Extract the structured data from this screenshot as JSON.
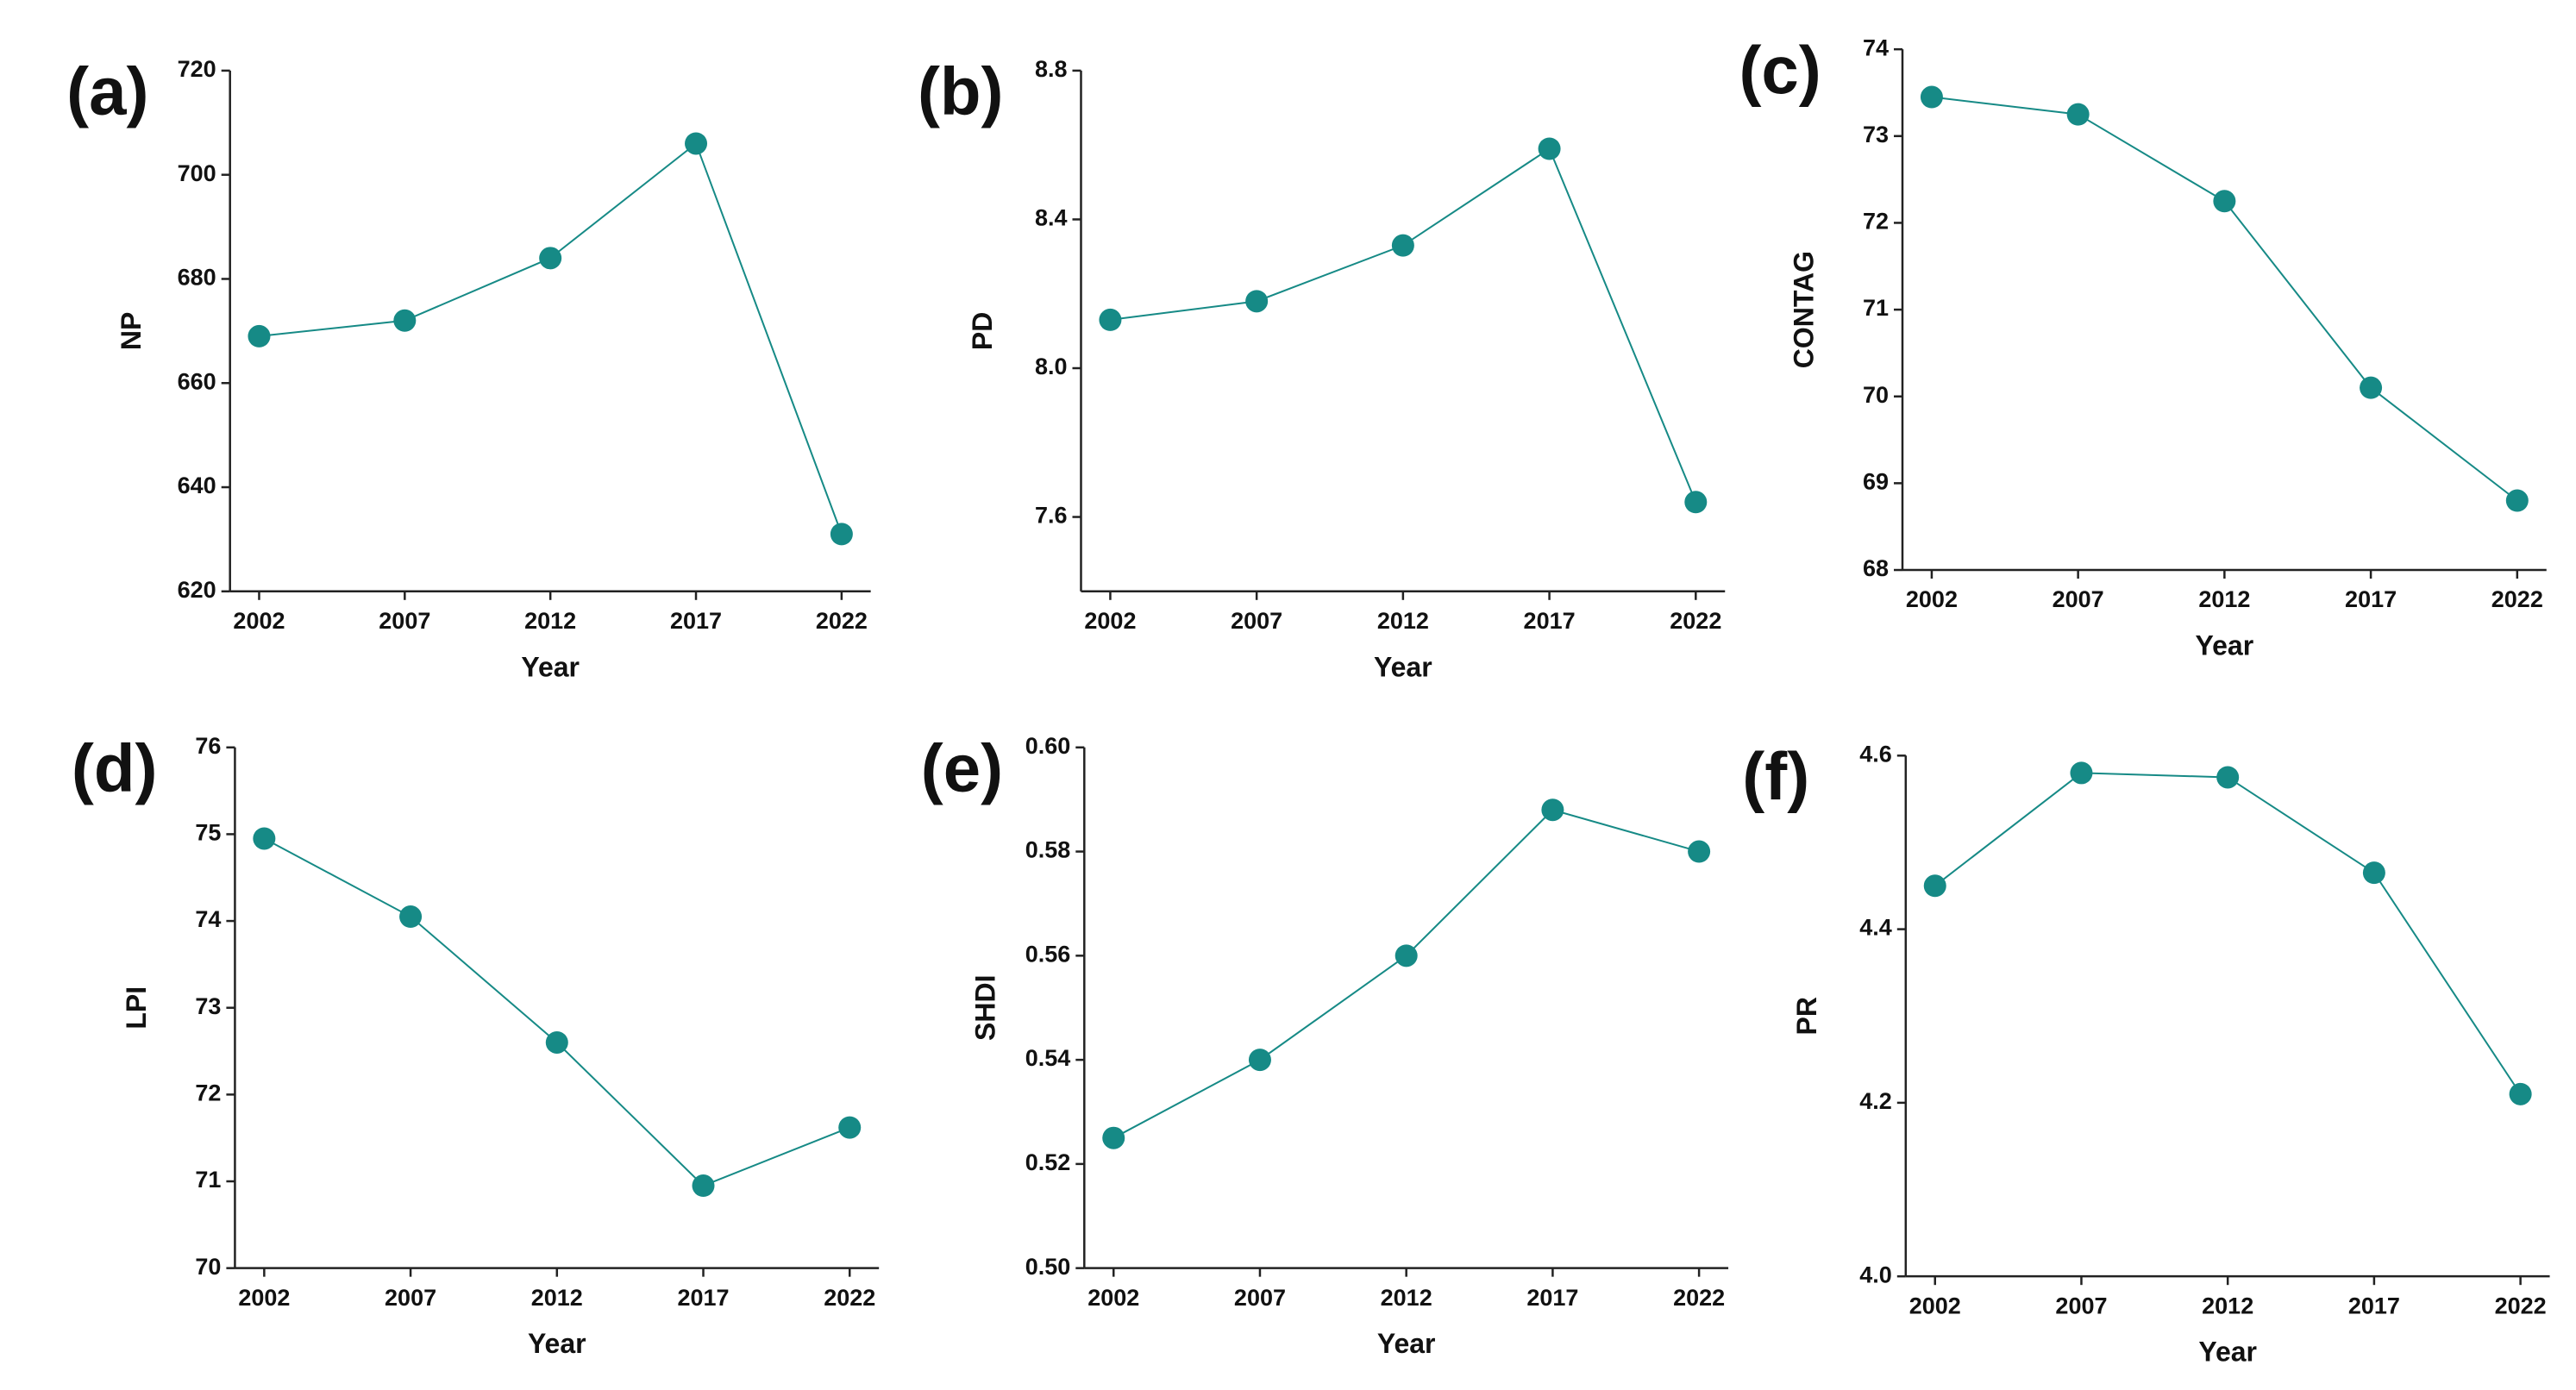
{
  "chart_data": [
    {
      "type": "line",
      "label": "(a)",
      "xlabel": "Year",
      "ylabel": "NP",
      "color": "#168a86",
      "x": [
        2002,
        2007,
        2012,
        2017,
        2022
      ],
      "values": [
        669,
        672,
        684,
        706,
        631
      ],
      "xlim": [
        2001,
        2023
      ],
      "xticks": [
        2002,
        2007,
        2012,
        2017,
        2022
      ],
      "ylim": [
        620,
        720
      ],
      "yticks": [
        620,
        640,
        660,
        680,
        700,
        720
      ]
    },
    {
      "type": "line",
      "label": "(b)",
      "xlabel": "Year",
      "ylabel": "PD",
      "color": "#168a86",
      "x": [
        2002,
        2007,
        2012,
        2017,
        2022
      ],
      "values": [
        8.13,
        8.18,
        8.33,
        8.59,
        7.64
      ],
      "xlim": [
        2001,
        2023
      ],
      "xticks": [
        2002,
        2007,
        2012,
        2017,
        2022
      ],
      "ylim": [
        7.4,
        8.8
      ],
      "yticks": [
        7.6,
        {
          "value": 8,
          "label": "8.0"
        },
        8.4,
        8.8
      ]
    },
    {
      "type": "line",
      "label": "(c)",
      "xlabel": "Year",
      "ylabel": "CONTAG",
      "color": "#168a86",
      "x": [
        2002,
        2007,
        2012,
        2017,
        2022
      ],
      "values": [
        73.45,
        73.25,
        72.25,
        70.1,
        68.8
      ],
      "xlim": [
        2001,
        2023
      ],
      "xticks": [
        2002,
        2007,
        2012,
        2017,
        2022
      ],
      "ylim": [
        68,
        74
      ],
      "yticks": [
        68,
        69,
        70,
        71,
        72,
        73,
        74
      ]
    },
    {
      "type": "line",
      "label": "(d)",
      "xlabel": "Year",
      "ylabel": "LPI",
      "color": "#168a86",
      "x": [
        2002,
        2007,
        2012,
        2017,
        2022
      ],
      "values": [
        74.95,
        74.05,
        72.6,
        70.95,
        71.62
      ],
      "xlim": [
        2001,
        2023
      ],
      "xticks": [
        2002,
        2007,
        2012,
        2017,
        2022
      ],
      "ylim": [
        70,
        76
      ],
      "yticks": [
        70,
        71,
        72,
        73,
        74,
        75,
        76
      ]
    },
    {
      "type": "line",
      "label": "(e)",
      "xlabel": "Year",
      "ylabel": "SHDI",
      "color": "#168a86",
      "x": [
        2002,
        2007,
        2012,
        2017,
        2022
      ],
      "values": [
        0.525,
        0.54,
        0.56,
        0.588,
        0.58
      ],
      "xlim": [
        2001,
        2023
      ],
      "xticks": [
        2002,
        2007,
        2012,
        2017,
        2022
      ],
      "ylim": [
        0.5,
        0.6
      ],
      "yticks": [
        {
          "value": 0.5,
          "label": "0.50"
        },
        0.52,
        0.54,
        0.56,
        0.58,
        {
          "value": 0.6,
          "label": "0.60"
        }
      ]
    },
    {
      "type": "line",
      "label": "(f)",
      "xlabel": "Year",
      "ylabel": "PR",
      "color": "#168a86",
      "x": [
        2002,
        2007,
        2012,
        2017,
        2022
      ],
      "values": [
        4.45,
        4.58,
        4.575,
        4.465,
        4.21
      ],
      "xlim": [
        2001,
        2023
      ],
      "xticks": [
        2002,
        2007,
        2012,
        2017,
        2022
      ],
      "ylim": [
        4.0,
        4.6
      ],
      "yticks": [
        {
          "value": 4,
          "label": "4.0"
        },
        4.2,
        4.4,
        4.6
      ]
    }
  ]
}
